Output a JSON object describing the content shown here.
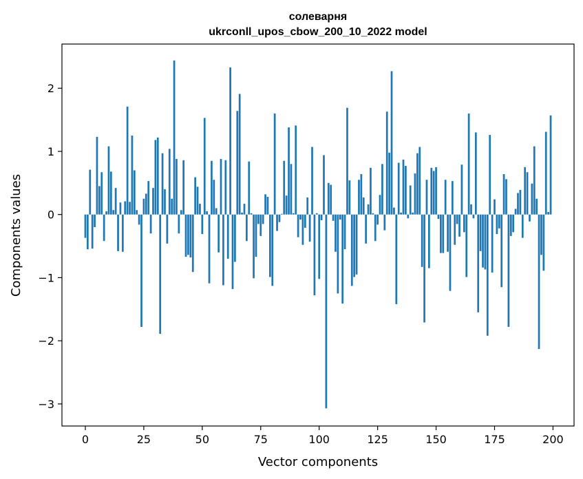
{
  "chart_data": {
    "type": "bar",
    "title": "солеварня",
    "subtitle": "ukrconll_upos_cbow_200_10_2022 model",
    "xlabel": "Vector components",
    "ylabel": "Components values",
    "xlim": [
      -10,
      209
    ],
    "ylim": [
      -3.35,
      2.7
    ],
    "xticks": [
      0,
      25,
      50,
      75,
      100,
      125,
      150,
      175,
      200
    ],
    "yticks": [
      -3,
      -2,
      -1,
      0,
      1,
      2
    ],
    "ytick_labels": [
      "−3",
      "−2",
      "−1",
      "0",
      "1",
      "2"
    ],
    "bar_color": "#1f77b4",
    "grid": false,
    "series": [
      {
        "values": [
          -0.37,
          -0.55,
          0.71,
          -0.54,
          -0.2,
          1.23,
          0.45,
          0.67,
          -0.42,
          0.05,
          1.08,
          0.68,
          0.07,
          0.42,
          -0.58,
          0.19,
          -0.59,
          0.21,
          1.71,
          0.2,
          1.25,
          0.7,
          0.07,
          -0.16,
          -1.78,
          0.25,
          0.33,
          0.53,
          -0.3,
          0.42,
          1.18,
          1.22,
          -1.89,
          0.97,
          0.4,
          -0.46,
          1.04,
          0.25,
          2.44,
          0.88,
          -0.3,
          0.07,
          0.86,
          -0.67,
          -0.64,
          -0.68,
          -0.91,
          0.59,
          0.44,
          0.17,
          -0.31,
          1.53,
          0.05,
          -1.09,
          0.85,
          0.55,
          0.1,
          -0.6,
          0.88,
          -1.12,
          0.86,
          -0.7,
          2.33,
          -1.18,
          -0.75,
          1.64,
          1.91,
          0.03,
          0.17,
          -0.42,
          0.84,
          0.02,
          -1.01,
          -0.67,
          -0.15,
          -0.34,
          -0.15,
          0.32,
          0.28,
          -0.99,
          -1.13,
          1.6,
          -0.26,
          -0.12,
          0.01,
          0.85,
          0.3,
          1.38,
          0.8,
          0.02,
          1.41,
          -0.36,
          -0.08,
          -0.48,
          -0.21,
          0.27,
          -0.43,
          1.07,
          -1.28,
          0.02,
          -1.02,
          -0.09,
          0.94,
          -3.07,
          0.5,
          0.47,
          -0.1,
          -0.59,
          -1.25,
          -0.08,
          -1.41,
          -0.55,
          1.69,
          0.54,
          -1.13,
          -0.99,
          -0.95,
          0.55,
          0.64,
          0.27,
          -0.46,
          0.16,
          0.74,
          0.02,
          -0.42,
          -0.16,
          0.31,
          0.8,
          -0.25,
          1.63,
          0.98,
          2.27,
          0.11,
          -1.42,
          0.82,
          0.03,
          0.87,
          0.77,
          -0.06,
          0.46,
          0.03,
          0.65,
          0.97,
          1.07,
          -0.83,
          -1.71,
          0.55,
          -0.85,
          0.74,
          0.69,
          0.75,
          -0.07,
          -0.61,
          -0.61,
          0.55,
          -0.59,
          -1.21,
          0.53,
          -0.48,
          -0.15,
          -0.35,
          0.79,
          -0.28,
          -0.99,
          1.6,
          0.16,
          -0.06,
          1.3,
          -1.55,
          -0.58,
          -0.84,
          -0.87,
          -1.92,
          1.26,
          -0.92,
          0.24,
          -0.31,
          -0.22,
          -1.15,
          0.64,
          0.56,
          -1.78,
          -0.34,
          -0.28,
          0.09,
          0.34,
          0.39,
          -0.37,
          0.75,
          0.67,
          -0.11,
          0.49,
          1.08,
          0.25,
          -2.13,
          -0.64,
          -0.89,
          1.31,
          0.04,
          1.57
        ]
      }
    ]
  }
}
